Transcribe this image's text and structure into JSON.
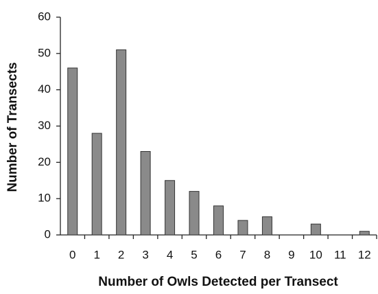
{
  "chart_data": {
    "type": "bar",
    "x_label": "Number of Owls Detected per Transect",
    "y_label": "Number of Transects",
    "categories": [
      "0",
      "1",
      "2",
      "3",
      "4",
      "5",
      "6",
      "7",
      "8",
      "9",
      "10",
      "11",
      "12"
    ],
    "values": [
      46,
      28,
      51,
      23,
      15,
      12,
      8,
      4,
      5,
      0,
      3,
      0,
      1
    ],
    "color": "#8a8a8a",
    "ylim": [
      0,
      60
    ],
    "yticks": [
      0,
      10,
      20,
      30,
      40,
      50,
      60
    ],
    "grid": false
  }
}
